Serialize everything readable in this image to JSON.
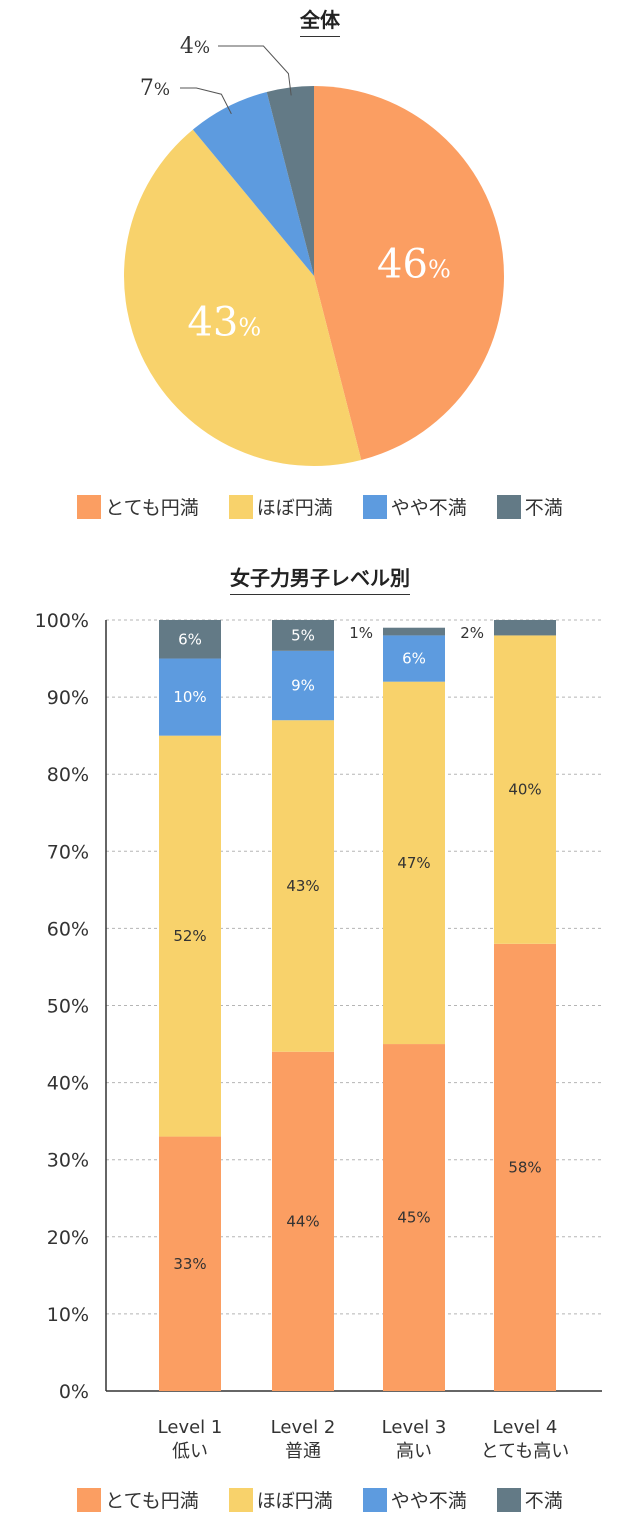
{
  "colors": {
    "very_satisfied": "#fb9e62",
    "mostly_satisfied": "#f8d26b",
    "somewhat_dissatisfied": "#5d9bdf",
    "dissatisfied": "#637a86"
  },
  "legend": [
    {
      "label": "とても円満",
      "color": "#fb9e62"
    },
    {
      "label": "ほぼ円満",
      "color": "#f8d26b"
    },
    {
      "label": "やや不満",
      "color": "#5d9bdf"
    },
    {
      "label": "不満",
      "color": "#637a86"
    }
  ],
  "chart_data": [
    {
      "type": "pie",
      "title": "全体",
      "slices": [
        {
          "label": "とても円満",
          "value": 46,
          "color": "#fb9e62"
        },
        {
          "label": "ほぼ円満",
          "value": 43,
          "color": "#f8d26b"
        },
        {
          "label": "やや不満",
          "value": 7,
          "color": "#5d9bdf"
        },
        {
          "label": "不満",
          "value": 4,
          "color": "#637a86"
        }
      ],
      "slice_labels": [
        "46%",
        "43%",
        "7%",
        "4%"
      ]
    },
    {
      "type": "bar",
      "stacked": true,
      "title": "女子力男子レベル別",
      "categories": [
        [
          "Level 1",
          "低い"
        ],
        [
          "Level 2",
          "普通"
        ],
        [
          "Level 3",
          "高い"
        ],
        [
          "Level 4",
          "とても高い"
        ]
      ],
      "series": [
        {
          "name": "とても円満",
          "values": [
            33,
            44,
            45,
            58
          ],
          "color": "#fb9e62"
        },
        {
          "name": "ほぼ円満",
          "values": [
            52,
            43,
            47,
            40
          ],
          "color": "#f8d26b"
        },
        {
          "name": "やや不満",
          "values": [
            10,
            9,
            6,
            0
          ],
          "color": "#5d9bdf"
        },
        {
          "name": "不満",
          "values": [
            6,
            5,
            1,
            2
          ],
          "color": "#637a86"
        }
      ],
      "ylim": [
        0,
        100
      ],
      "yticks": [
        "0%",
        "10%",
        "20%",
        "30%",
        "40%",
        "50%",
        "60%",
        "70%",
        "80%",
        "90%",
        "100%"
      ],
      "grid": true,
      "legend_position": "bottom"
    }
  ]
}
